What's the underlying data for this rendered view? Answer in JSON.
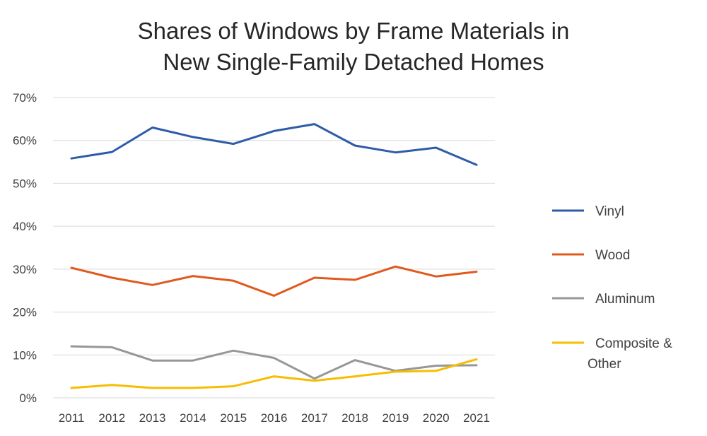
{
  "chart_data": {
    "type": "line",
    "title_lines": [
      "Shares of Windows by Frame Materials in",
      "New Single-Family Detached Homes"
    ],
    "xlabel": "",
    "ylabel": "",
    "x": [
      "2011",
      "2012",
      "2013",
      "2014",
      "2015",
      "2016",
      "2017",
      "2018",
      "2019",
      "2020",
      "2021"
    ],
    "y_ticks": [
      "0%",
      "10%",
      "20%",
      "30%",
      "40%",
      "50%",
      "60%",
      "70%"
    ],
    "ylim": [
      0,
      70
    ],
    "grid": true,
    "legend_position": "right",
    "series": [
      {
        "name": "Vinyl",
        "color": "#2E5CA8",
        "values": [
          55.8,
          57.3,
          63.0,
          60.8,
          59.2,
          62.2,
          63.8,
          58.8,
          57.2,
          58.3,
          54.3
        ]
      },
      {
        "name": "Wood",
        "color": "#E05A1E",
        "values": [
          30.3,
          28.0,
          26.3,
          28.4,
          27.3,
          23.8,
          28.0,
          27.5,
          30.6,
          28.3,
          29.4
        ]
      },
      {
        "name": "Aluminum",
        "color": "#979797",
        "values": [
          12.0,
          11.8,
          8.7,
          8.7,
          11.0,
          9.3,
          4.5,
          8.8,
          6.3,
          7.5,
          7.6
        ]
      },
      {
        "name_lines": [
          "Composite &",
          "Other"
        ],
        "color": "#F7BD00",
        "values": [
          2.3,
          3.0,
          2.3,
          2.3,
          2.7,
          5.0,
          4.0,
          5.0,
          6.1,
          6.3,
          9.0
        ]
      }
    ]
  }
}
